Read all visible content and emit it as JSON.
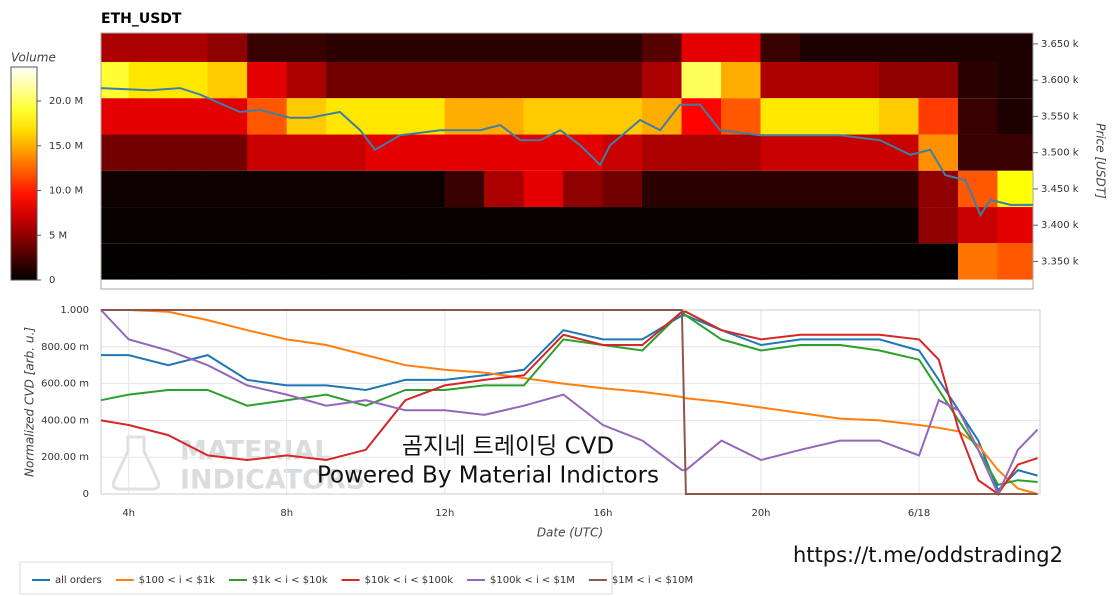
{
  "chart_data": [
    {
      "type": "heatmap",
      "title": "ETH_USDT",
      "x": [
        3,
        4,
        5,
        6,
        7,
        8,
        9,
        10,
        11,
        12,
        13,
        14,
        15,
        16,
        17,
        18,
        19,
        20,
        21,
        22,
        23,
        24,
        25,
        26
      ],
      "y": [
        3650,
        3600,
        3550,
        3500,
        3450,
        3400,
        3350
      ],
      "z": [
        [
          6,
          6,
          6,
          5,
          2,
          2,
          1.5,
          1.5,
          1.5,
          1.5,
          1.5,
          1.5,
          1.5,
          1.5,
          3,
          8,
          8,
          2,
          1,
          1,
          1,
          1,
          1,
          1
        ],
        [
          19,
          17,
          17,
          16,
          8,
          6,
          4,
          4,
          4,
          4,
          4,
          4,
          4,
          4,
          6,
          20,
          15,
          6,
          6,
          6,
          5,
          5,
          1.5,
          1
        ],
        [
          8,
          8,
          8,
          8,
          12,
          16,
          17,
          17,
          17,
          15,
          15,
          16,
          16,
          16,
          15,
          9,
          12,
          17,
          17,
          17,
          16,
          11,
          2,
          1
        ],
        [
          4,
          4,
          4,
          4,
          7,
          7,
          7,
          8,
          8,
          8,
          8,
          8,
          8,
          7,
          6,
          6,
          6,
          7,
          7,
          7,
          7,
          14,
          2,
          2
        ],
        [
          0.5,
          0.5,
          0.5,
          0.5,
          0.5,
          0.5,
          0.5,
          0.5,
          0.5,
          2,
          6,
          8,
          5,
          4,
          1.5,
          1.5,
          1.5,
          1.5,
          1.5,
          1.5,
          1.5,
          5,
          12,
          18
        ],
        [
          0.3,
          0.3,
          0.3,
          0.3,
          0.3,
          0.3,
          0.3,
          0.3,
          0.3,
          0.3,
          0.3,
          0.3,
          0.3,
          0.3,
          0.3,
          0.3,
          0.3,
          0.3,
          0.3,
          0.3,
          0.3,
          5,
          7,
          8
        ],
        [
          0.1,
          0.1,
          0.1,
          0.1,
          0.1,
          0.1,
          0.1,
          0.1,
          0.1,
          0.1,
          0.1,
          0.1,
          0.1,
          0.1,
          0.1,
          0.1,
          0.1,
          0.1,
          0.1,
          0.1,
          0.1,
          0.1,
          13,
          12
        ]
      ],
      "colormap": "hot",
      "zlim": [
        0,
        23.8
      ],
      "zlabel": "Volume",
      "zticks": [
        0,
        {
          "value": 5,
          "label": "5 M"
        },
        {
          "value": 10,
          "label": "10.0 M"
        },
        {
          "value": 15,
          "label": "15.0 M"
        },
        {
          "value": 20,
          "label": "20.0 M"
        }
      ],
      "xlim": [
        3.3,
        26.9
      ],
      "ylim": [
        3312,
        3665
      ],
      "ylabel": "Price [USDT]",
      "yticks": [
        {
          "value": 3650,
          "label": "3.650 k"
        },
        {
          "value": 3600,
          "label": "3.600 k"
        },
        {
          "value": 3550,
          "label": "3.550 k"
        },
        {
          "value": 3500,
          "label": "3.500 k"
        },
        {
          "value": 3450,
          "label": "3.450 k"
        },
        {
          "value": 3400,
          "label": "3.400 k"
        },
        {
          "value": 3350,
          "label": "3.350 k"
        }
      ],
      "price": {
        "color": "#3f7fa6",
        "x": [
          3.3,
          4.54,
          5.3,
          5.81,
          6.31,
          6.82,
          7.33,
          8.09,
          8.59,
          9.35,
          9.86,
          10.24,
          10.87,
          11.89,
          12.9,
          13.41,
          13.92,
          14.42,
          14.93,
          15.44,
          15.94,
          16.19,
          16.95,
          17.46,
          17.96,
          18.47,
          18.98,
          19.99,
          21.0,
          22.02,
          23.03,
          23.79,
          24.3,
          24.68,
          25.19,
          25.57,
          25.82,
          26.33,
          26.9
        ],
        "values": [
          3589,
          3586,
          3589,
          3580,
          3568,
          3556,
          3559,
          3548,
          3548,
          3556,
          3531,
          3504,
          3524,
          3531,
          3531,
          3538,
          3517,
          3517,
          3531,
          3510,
          3483,
          3510,
          3545,
          3531,
          3566,
          3566,
          3531,
          3524,
          3524,
          3524,
          3517,
          3497,
          3504,
          3469,
          3462,
          3414,
          3435,
          3428,
          3428
        ]
      }
    },
    {
      "type": "line",
      "xlabel": "Date (UTC)",
      "ylabel": "Normalized CVD [arb. u.]",
      "x": [
        3.3,
        4,
        5,
        6,
        7,
        8,
        9,
        10,
        11,
        12,
        13,
        14,
        15,
        16,
        17,
        18,
        18.1,
        19,
        20,
        21,
        22,
        23,
        24,
        24.5,
        25,
        25.5,
        26,
        26.5,
        27
      ],
      "xlim": [
        3.3,
        27.06
      ],
      "ylim": [
        0,
        1
      ],
      "grid": true,
      "legend": "bottom-left",
      "xticks": [
        {
          "value": 4,
          "label": "4h"
        },
        {
          "value": 8,
          "label": "8h"
        },
        {
          "value": 12,
          "label": "12h"
        },
        {
          "value": 16,
          "label": "16h"
        },
        {
          "value": 20,
          "label": "20h"
        },
        {
          "value": 24,
          "label": "6/18"
        }
      ],
      "yticks": [
        0,
        {
          "value": 0.2,
          "label": "200.00 m"
        },
        {
          "value": 0.4,
          "label": "400.00 m"
        },
        {
          "value": 0.6,
          "label": "600.00 m"
        },
        {
          "value": 0.8,
          "label": "800.00 m"
        },
        {
          "value": 1,
          "label": "1.000"
        }
      ],
      "series": [
        {
          "name": "all orders",
          "color": "#1f77b4",
          "values": [
            0.755,
            0.755,
            0.7,
            0.755,
            0.62,
            0.59,
            0.59,
            0.565,
            0.62,
            0.62,
            0.645,
            0.675,
            0.89,
            0.84,
            0.84,
            0.97,
            0.97,
            0.89,
            0.81,
            0.84,
            0.84,
            0.84,
            0.78,
            0.62,
            0.455,
            0.29,
            0.02,
            0.13,
            0.1
          ]
        },
        {
          "name": "$100 < i < $1k",
          "color": "#ff7f0e",
          "values": [
            1.0,
            1.0,
            0.99,
            0.945,
            0.89,
            0.84,
            0.81,
            0.755,
            0.7,
            0.675,
            0.66,
            0.63,
            0.6,
            0.575,
            0.555,
            0.527,
            0.52,
            0.5,
            0.47,
            0.44,
            0.41,
            0.4,
            0.375,
            0.36,
            0.34,
            0.265,
            0.13,
            0.03,
            0
          ]
        },
        {
          "name": "$1k < i < $10k",
          "color": "#2ca02c",
          "values": [
            0.51,
            0.54,
            0.565,
            0.565,
            0.48,
            0.51,
            0.54,
            0.48,
            0.565,
            0.565,
            0.59,
            0.59,
            0.84,
            0.81,
            0.78,
            0.99,
            0.97,
            0.84,
            0.78,
            0.81,
            0.81,
            0.78,
            0.73,
            0.565,
            0.4,
            0.24,
            0.05,
            0.075,
            0.065
          ]
        },
        {
          "name": "$10k < i < $100k",
          "color": "#d62728",
          "values": [
            0.4,
            0.375,
            0.32,
            0.21,
            0.185,
            0.21,
            0.185,
            0.24,
            0.51,
            0.59,
            0.62,
            0.645,
            0.865,
            0.81,
            0.81,
            0.99,
            0.99,
            0.89,
            0.84,
            0.865,
            0.865,
            0.865,
            0.84,
            0.73,
            0.35,
            0.075,
            0,
            0.16,
            0.195
          ]
        },
        {
          "name": "$100k < i < $1M",
          "color": "#9467bd",
          "values": [
            1.0,
            0.84,
            0.78,
            0.7,
            0.59,
            0.54,
            0.48,
            0.51,
            0.455,
            0.455,
            0.43,
            0.48,
            0.54,
            0.375,
            0.29,
            0.13,
            0.13,
            0.29,
            0.185,
            0.24,
            0.29,
            0.29,
            0.21,
            0.51,
            0.455,
            0.24,
            0,
            0.24,
            0.35
          ]
        },
        {
          "name": "$1M < i < $10M",
          "color": "#8c564b",
          "values": [
            1,
            1,
            1,
            1,
            1,
            1,
            1,
            1,
            1,
            1,
            1,
            1,
            1,
            1,
            1,
            1,
            0,
            0,
            0,
            0,
            0,
            0,
            0,
            0,
            0,
            0,
            0,
            0,
            0
          ]
        }
      ]
    }
  ],
  "annotations": [
    "곰지네 트레이딩 CVD",
    "Powered By Material Indictors",
    "https://t.me/oddstrading2"
  ],
  "watermark": [
    "MATERIAL",
    "INDICATORS"
  ]
}
